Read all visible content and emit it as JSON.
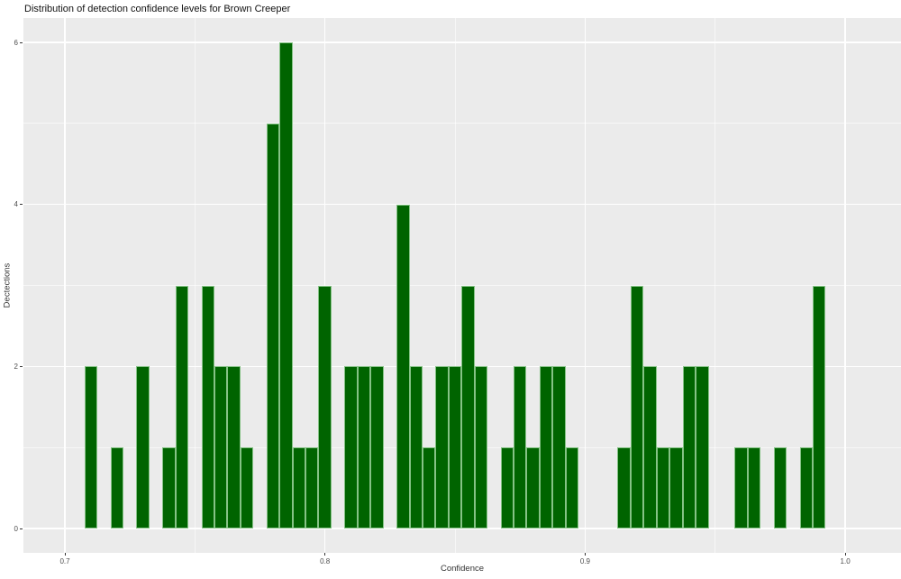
{
  "title": "Distribution of detection confidence levels for Brown Creeper",
  "chart_data": {
    "type": "bar",
    "subtype": "histogram",
    "title": "Distribution of detection confidence levels for Brown Creeper",
    "xlabel": "Confidence",
    "ylabel": "Dectections",
    "bin_width": 0.005,
    "xlim": [
      0.684,
      1.0215
    ],
    "ylim": [
      -0.3,
      6.3
    ],
    "grid": "on",
    "legend": "none",
    "x_ticks": [
      0.7,
      0.8,
      0.9,
      1.0
    ],
    "x_tick_labels": [
      "0.7",
      "0.8",
      "0.9",
      "1.0"
    ],
    "x_minor_ticks": [
      0.75,
      0.85,
      0.95
    ],
    "y_ticks": [
      0,
      2,
      4,
      6
    ],
    "y_tick_labels": [
      "0",
      "2",
      "4",
      "6"
    ],
    "y_minor_ticks": [
      1,
      3,
      5
    ],
    "bars": [
      {
        "x": 0.71,
        "count": 2
      },
      {
        "x": 0.72,
        "count": 1
      },
      {
        "x": 0.73,
        "count": 2
      },
      {
        "x": 0.74,
        "count": 1
      },
      {
        "x": 0.745,
        "count": 3
      },
      {
        "x": 0.755,
        "count": 3
      },
      {
        "x": 0.76,
        "count": 2
      },
      {
        "x": 0.765,
        "count": 2
      },
      {
        "x": 0.77,
        "count": 1
      },
      {
        "x": 0.78,
        "count": 5
      },
      {
        "x": 0.785,
        "count": 6
      },
      {
        "x": 0.79,
        "count": 1
      },
      {
        "x": 0.795,
        "count": 1
      },
      {
        "x": 0.8,
        "count": 3
      },
      {
        "x": 0.81,
        "count": 2
      },
      {
        "x": 0.815,
        "count": 2
      },
      {
        "x": 0.82,
        "count": 2
      },
      {
        "x": 0.83,
        "count": 4
      },
      {
        "x": 0.835,
        "count": 2
      },
      {
        "x": 0.84,
        "count": 1
      },
      {
        "x": 0.845,
        "count": 2
      },
      {
        "x": 0.85,
        "count": 2
      },
      {
        "x": 0.855,
        "count": 3
      },
      {
        "x": 0.86,
        "count": 2
      },
      {
        "x": 0.87,
        "count": 1
      },
      {
        "x": 0.875,
        "count": 2
      },
      {
        "x": 0.88,
        "count": 1
      },
      {
        "x": 0.885,
        "count": 2
      },
      {
        "x": 0.89,
        "count": 2
      },
      {
        "x": 0.895,
        "count": 1
      },
      {
        "x": 0.915,
        "count": 1
      },
      {
        "x": 0.92,
        "count": 3
      },
      {
        "x": 0.925,
        "count": 2
      },
      {
        "x": 0.93,
        "count": 1
      },
      {
        "x": 0.935,
        "count": 1
      },
      {
        "x": 0.94,
        "count": 2
      },
      {
        "x": 0.945,
        "count": 2
      },
      {
        "x": 0.96,
        "count": 1
      },
      {
        "x": 0.965,
        "count": 1
      },
      {
        "x": 0.975,
        "count": 1
      },
      {
        "x": 0.985,
        "count": 1
      },
      {
        "x": 0.99,
        "count": 3
      }
    ],
    "colors": {
      "bar_fill": "#006400",
      "bar_edge": "#85C285",
      "panel_bg": "#EBEBEB",
      "gridline": "#FFFFFF",
      "tick_text": "#4D4D4D",
      "axis_title_text": "#333333",
      "title_text": "#111111",
      "outer_bg": "#FFFFFF"
    }
  }
}
